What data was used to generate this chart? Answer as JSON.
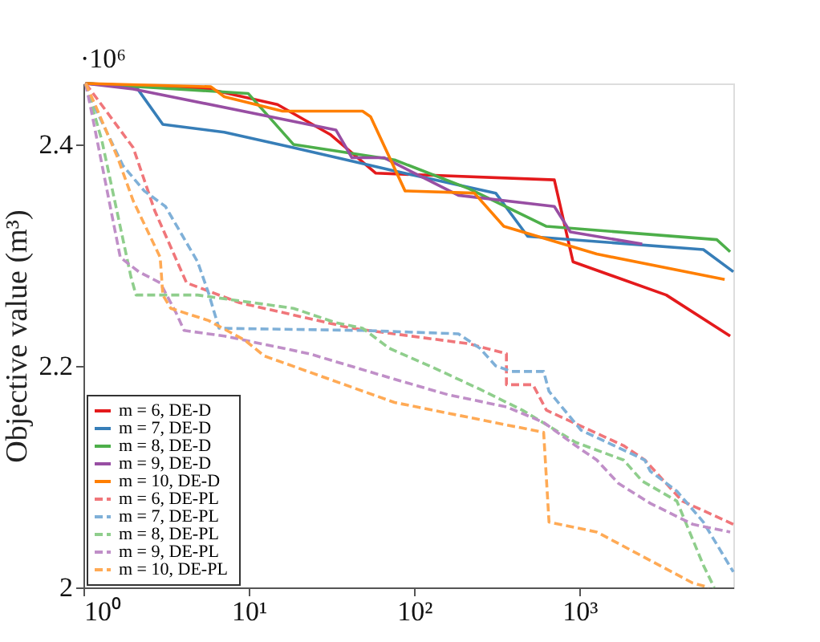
{
  "chart_data": {
    "type": "line",
    "ylabel": "Objective value (m³)",
    "annotations": [
      "·10⁶"
    ],
    "xlim": [
      1,
      8500
    ],
    "xticks": [
      {
        "value": 1,
        "label": "10⁰"
      },
      {
        "value": 10,
        "label": "10¹"
      },
      {
        "value": 100,
        "label": "10²"
      },
      {
        "value": 1000,
        "label": "10³"
      }
    ],
    "ylim": [
      2.0,
      2.455
    ],
    "yticks": [
      2,
      2.2,
      2.4
    ],
    "log": "x",
    "grid": false,
    "legend": "bottom left",
    "marker": "none",
    "series": [
      {
        "name": "m = 6,  DE-D",
        "color": "#e41a1c",
        "line_style": "solid",
        "x": [
          1.03,
          5.7,
          14.9,
          31,
          58.6,
          703,
          912,
          3340,
          8130
        ],
        "values": [
          2.455,
          2.45,
          2.436,
          2.409,
          2.374,
          2.368,
          2.294,
          2.264,
          2.227
        ]
      },
      {
        "name": "m = 7,  DE-D",
        "color": "#377eb8",
        "line_style": "solid",
        "x": [
          1.03,
          2.08,
          3.02,
          7.1,
          18.6,
          76,
          311,
          485,
          5600,
          8500
        ],
        "values": [
          2.455,
          2.452,
          2.418,
          2.411,
          2.397,
          2.376,
          2.356,
          2.317,
          2.305,
          2.285
        ]
      },
      {
        "name": "m = 8,  DE-D",
        "color": "#4daf4a",
        "line_style": "solid",
        "x": [
          1.03,
          9.9,
          18.6,
          76,
          214,
          630,
          6750,
          8130
        ],
        "values": [
          2.455,
          2.446,
          2.4,
          2.386,
          2.36,
          2.326,
          2.314,
          2.303
        ]
      },
      {
        "name": "m = 9,  DE-D",
        "color": "#984ea3",
        "line_style": "solid",
        "x": [
          1.03,
          2.0,
          33.6,
          42,
          65.5,
          185,
          703,
          879,
          2390
        ],
        "values": [
          2.455,
          2.45,
          2.413,
          2.388,
          2.388,
          2.354,
          2.344,
          2.321,
          2.31
        ]
      },
      {
        "name": "m = 10,  DE-D",
        "color": "#ff7f00",
        "line_style": "solid",
        "x": [
          1.03,
          5.9,
          7.1,
          16,
          48.7,
          54.5,
          88,
          231,
          348,
          1270,
          7530
        ],
        "values": [
          2.455,
          2.452,
          2.443,
          2.43,
          2.43,
          2.425,
          2.358,
          2.356,
          2.326,
          2.301,
          2.278
        ]
      },
      {
        "name": "m = 6,  DE-PL",
        "color": "#f0767a",
        "line_style": "dashed",
        "x": [
          1.03,
          1.24,
          2.0,
          2.7,
          4.2,
          8.8,
          42,
          214,
          361,
          361,
          522,
          630,
          1845,
          2480,
          4170,
          8500
        ],
        "values": [
          2.455,
          2.439,
          2.397,
          2.34,
          2.275,
          2.257,
          2.234,
          2.22,
          2.211,
          2.183,
          2.183,
          2.16,
          2.128,
          2.115,
          2.078,
          2.057
        ]
      },
      {
        "name": "m = 7,  DE-PL",
        "color": "#7fb0d8",
        "line_style": "dashed",
        "x": [
          1.03,
          1.15,
          1.73,
          2.33,
          3.13,
          4.9,
          5.7,
          6.6,
          48.7,
          185,
          249,
          311,
          388,
          606,
          653,
          1020,
          2480,
          2670,
          3870,
          5600,
          8500
        ],
        "values": [
          2.455,
          2.436,
          2.381,
          2.358,
          2.344,
          2.294,
          2.266,
          2.234,
          2.232,
          2.229,
          2.216,
          2.2,
          2.195,
          2.195,
          2.177,
          2.142,
          2.115,
          2.105,
          2.087,
          2.059,
          2.014
        ]
      },
      {
        "name": "m = 8,  DE-PL",
        "color": "#8fce8c",
        "line_style": "dashed",
        "x": [
          1.03,
          1.29,
          1.94,
          2.08,
          4.9,
          18.6,
          33.6,
          48.7,
          70.5,
          137,
          249,
          451,
          946,
          1845,
          2390,
          3870,
          5600,
          6510
        ],
        "values": [
          2.455,
          2.404,
          2.28,
          2.264,
          2.264,
          2.252,
          2.239,
          2.234,
          2.216,
          2.197,
          2.179,
          2.16,
          2.131,
          2.115,
          2.096,
          2.078,
          2.02,
          2.0
        ]
      },
      {
        "name": "m = 9,  DE-PL",
        "color": "#c08fc8",
        "line_style": "dashed",
        "x": [
          1.03,
          1.11,
          1.67,
          2.16,
          2.91,
          3.63,
          4.06,
          7.1,
          23.2,
          76,
          160,
          361,
          606,
          946,
          1270,
          1715,
          2670,
          4830,
          8130
        ],
        "values": [
          2.455,
          2.432,
          2.298,
          2.285,
          2.275,
          2.248,
          2.232,
          2.227,
          2.211,
          2.188,
          2.174,
          2.163,
          2.149,
          2.128,
          2.115,
          2.094,
          2.076,
          2.057,
          2.05
        ]
      },
      {
        "name": "m = 10,  DE-PL",
        "color": "#ffaa55",
        "line_style": "dashed",
        "x": [
          1.03,
          1.19,
          1.61,
          2.0,
          2.91,
          3.02,
          3.37,
          5.7,
          9.5,
          12.4,
          76,
          606,
          653,
          1270,
          4830,
          6030
        ],
        "values": [
          2.455,
          2.434,
          2.388,
          2.349,
          2.298,
          2.264,
          2.252,
          2.241,
          2.223,
          2.209,
          2.167,
          2.14,
          2.059,
          2.05,
          2.004,
          2.0
        ]
      }
    ]
  }
}
